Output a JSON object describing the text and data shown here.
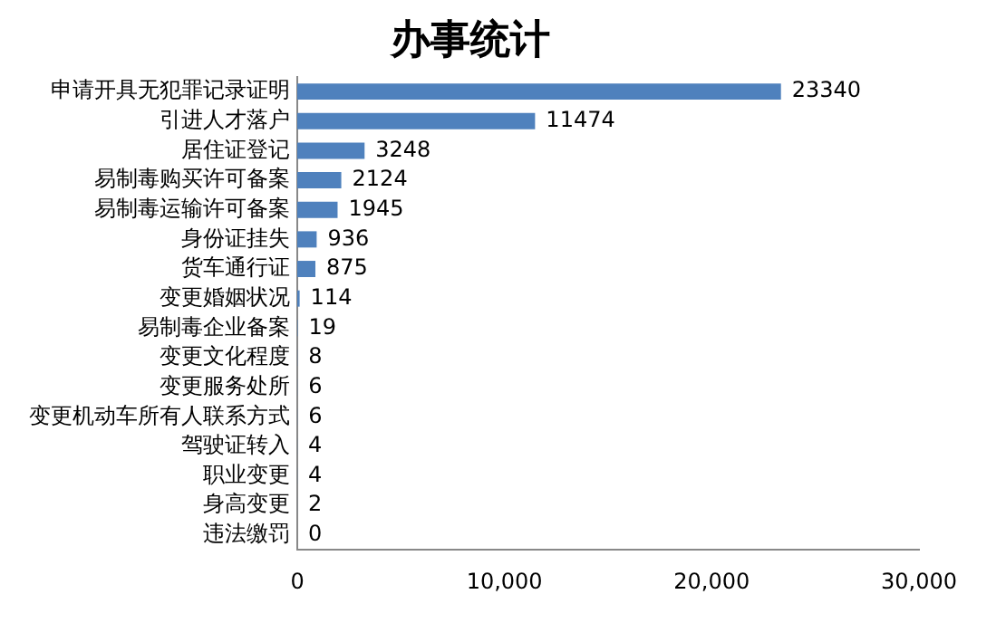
{
  "chart_data": {
    "type": "bar",
    "orientation": "horizontal",
    "title": "办事统计",
    "categories": [
      "申请开具无犯罪记录证明",
      "引进人才落户",
      "居住证登记",
      "易制毒购买许可备案",
      "易制毒运输许可备案",
      "身份证挂失",
      "货车通行证",
      "变更婚姻状况",
      "易制毒企业备案",
      "变更文化程度",
      "变更服务处所",
      "变更机动车所有人联系方式",
      "驾驶证转入",
      "职业变更",
      "身高变更",
      "违法缴罚"
    ],
    "values": [
      23340,
      11474,
      3248,
      2124,
      1945,
      936,
      875,
      114,
      19,
      8,
      6,
      6,
      4,
      4,
      2,
      0
    ],
    "color": "#4f81bd",
    "data_labels": true,
    "grid": false,
    "legend": false,
    "xlim": [
      0,
      30000
    ],
    "xticks": [
      0,
      {
        "value": 10000,
        "label": "10,000"
      },
      {
        "value": 20000,
        "label": "20,000"
      },
      {
        "value": 30000,
        "label": "30,000"
      }
    ]
  }
}
